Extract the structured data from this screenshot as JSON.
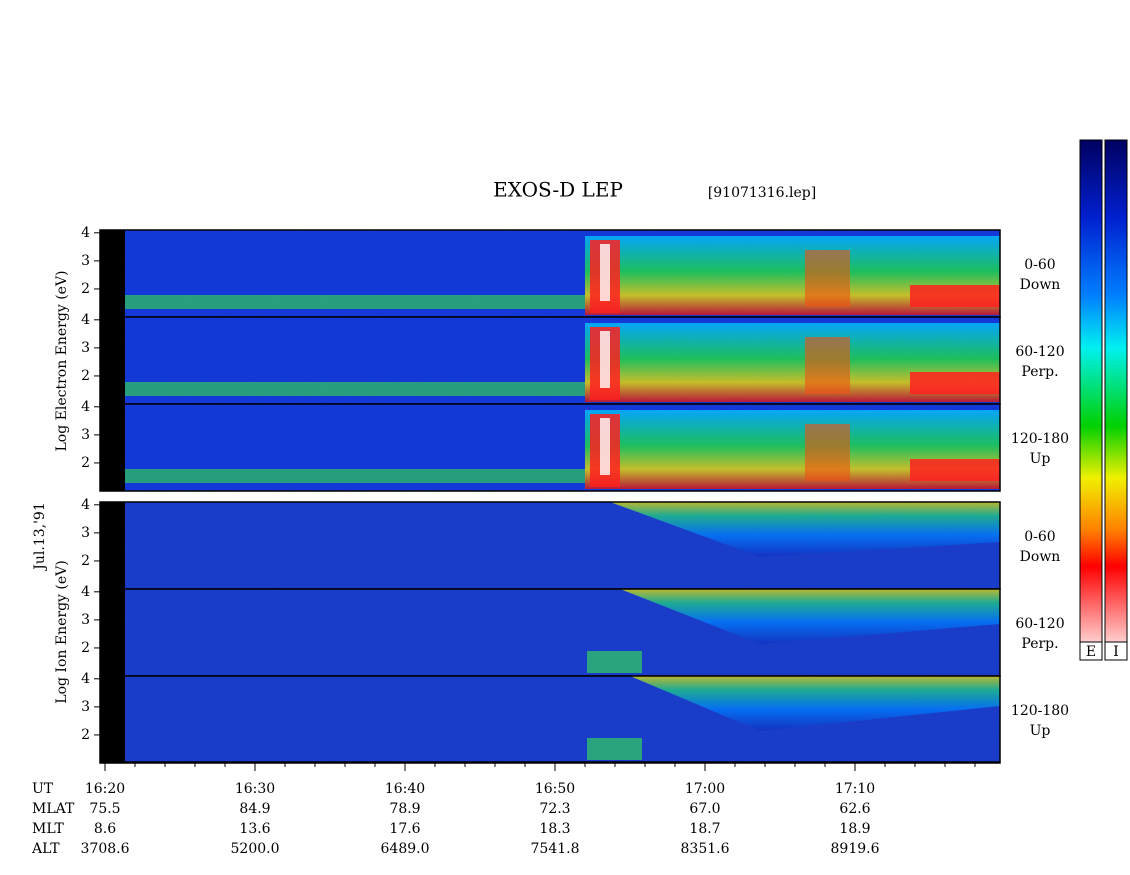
{
  "title": "EXOS-D LEP",
  "file": "[91071316.lep]",
  "date": "Jul.13,'91",
  "electron": {
    "axis_label": "Log Electron Energy (eV)",
    "panels": [
      {
        "label": [
          "0-60",
          "Down"
        ]
      },
      {
        "label": [
          "60-120",
          "Perp."
        ]
      },
      {
        "label": [
          "120-180",
          "Up"
        ]
      }
    ]
  },
  "ion": {
    "axis_label": "Log Ion Energy (eV)",
    "panels": [
      {
        "label": [
          "0-60",
          "Down"
        ]
      },
      {
        "label": [
          "60-120",
          "Perp."
        ]
      },
      {
        "label": [
          "120-180",
          "Up"
        ]
      }
    ]
  },
  "ylim": [
    1,
    4.1
  ],
  "yticks": [
    2,
    3,
    4
  ],
  "x_axis": {
    "rows": [
      {
        "name": "UT",
        "values": [
          "16:20",
          "16:30",
          "16:40",
          "16:50",
          "17:00",
          "17:10"
        ]
      },
      {
        "name": "MLAT",
        "values": [
          "75.5",
          "84.9",
          "78.9",
          "72.3",
          "67.0",
          "62.6"
        ]
      },
      {
        "name": "MLT",
        "values": [
          "8.6",
          "13.6",
          "17.6",
          "18.3",
          "18.7",
          "18.9"
        ]
      },
      {
        "name": "ALT",
        "values": [
          "3708.6",
          "5200.0",
          "6489.0",
          "7541.8",
          "8351.6",
          "8919.6"
        ]
      }
    ]
  },
  "colorbars": [
    "E",
    "I"
  ]
}
